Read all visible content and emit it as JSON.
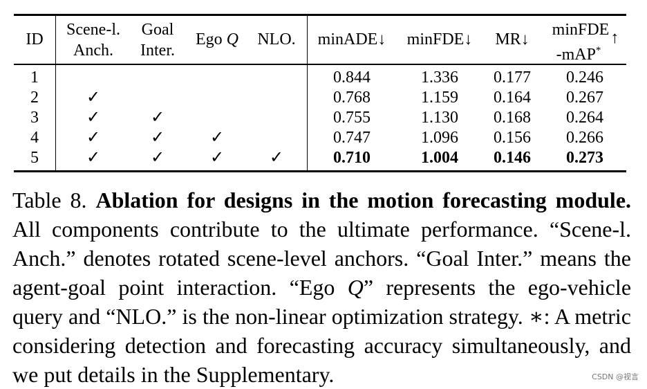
{
  "table": {
    "columns": [
      "ID",
      "Scene-l.\nAnch.",
      "Goal\nInter.",
      "Ego Q",
      "NLO.",
      "minADE↓",
      "minFDE↓",
      "MR↓",
      "minFDE\n-mAP* ↑"
    ],
    "header": {
      "id": "ID",
      "scene_1": "Scene-l.",
      "scene_2": "Anch.",
      "goal_1": "Goal",
      "goal_2": "Inter.",
      "ego_prefix": "Ego ",
      "ego_q": "Q",
      "nlo": "NLO.",
      "minade": "minADE↓",
      "minfde": "minFDE↓",
      "mr": "MR↓",
      "mfde_1": "minFDE",
      "mfde_2": "-mAP",
      "mfde_star": "*",
      "mfde_arrow": "↑"
    },
    "check_mark": "✓",
    "rows": [
      {
        "id": "1",
        "scene": "",
        "goal": "",
        "ego": "",
        "nlo": "",
        "minade": "0.844",
        "minfde": "1.336",
        "mr": "0.177",
        "mfde": "0.246"
      },
      {
        "id": "2",
        "scene": "✓",
        "goal": "",
        "ego": "",
        "nlo": "",
        "minade": "0.768",
        "minfde": "1.159",
        "mr": "0.164",
        "mfde": "0.267"
      },
      {
        "id": "3",
        "scene": "✓",
        "goal": "✓",
        "ego": "",
        "nlo": "",
        "minade": "0.755",
        "minfde": "1.130",
        "mr": "0.168",
        "mfde": "0.264"
      },
      {
        "id": "4",
        "scene": "✓",
        "goal": "✓",
        "ego": "✓",
        "nlo": "",
        "minade": "0.747",
        "minfde": "1.096",
        "mr": "0.156",
        "mfde": "0.266"
      },
      {
        "id": "5",
        "scene": "✓",
        "goal": "✓",
        "ego": "✓",
        "nlo": "✓",
        "minade": "0.710",
        "minfde": "1.004",
        "mr": "0.146",
        "mfde": "0.273"
      }
    ]
  },
  "caption": {
    "label": "Table 8.",
    "title": "Ablation for designs in the motion forecasting module.",
    "sentence_1": "All components contribute to the ultimate performance.",
    "sentence_2": "“Scene-l. Anch.” denotes rotated scene-level anchors.",
    "sentence_3": "“Goal Inter.” means the agent-goal point interaction.",
    "ego_open": "“Ego ",
    "ego_q": "Q",
    "ego_rest": "” represents the ego-vehicle query and “NLO.” is the non-linear optimization strategy.",
    "star": "∗",
    "footnote": ": A metric considering detection and forecasting accuracy simultaneously, and we put details in the Supplementary."
  },
  "watermark": "CSDN @视言"
}
